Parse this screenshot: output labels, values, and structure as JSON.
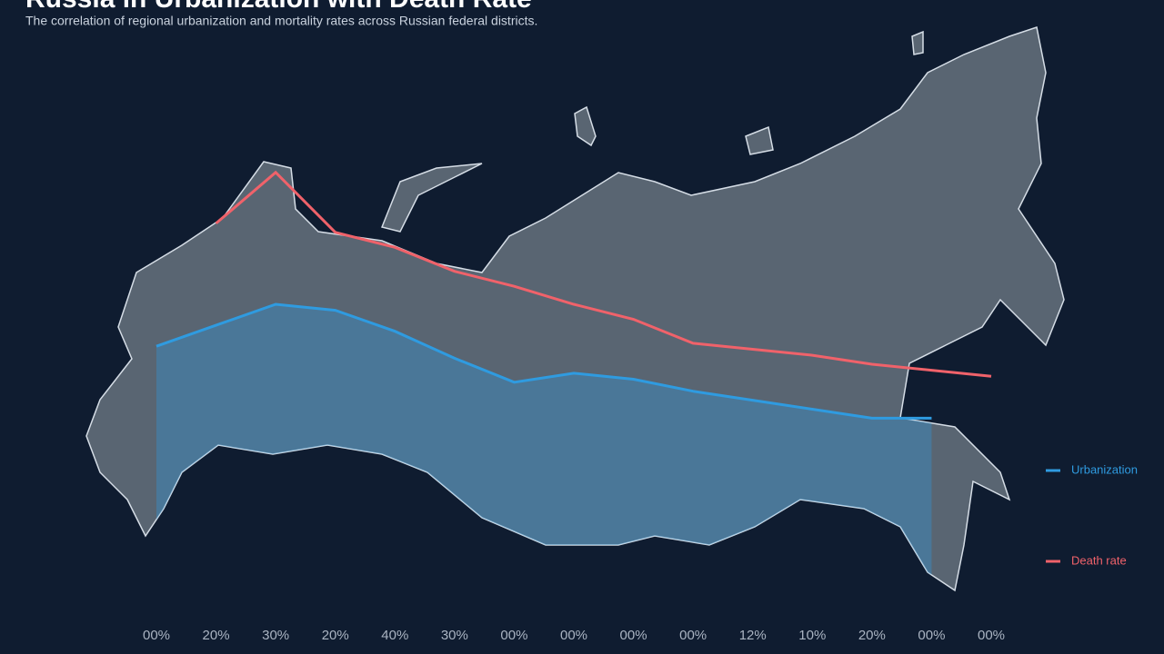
{
  "chart_data": {
    "type": "line",
    "title": "Russia in Urbanization with Death Rate",
    "subtitle": "The correlation of regional urbanization and mortality rates across Russian federal districts.",
    "categories": [
      "00%",
      "20%",
      "30%",
      "20%",
      "40%",
      "30%",
      "00%",
      "00%",
      "00%",
      "00%",
      "12%",
      "10%",
      "20%",
      "00%",
      "00%"
    ],
    "ylim": [
      0,
      100
    ],
    "series": [
      {
        "name": "Urbanization",
        "color": "#2f9be0",
        "values": [
          36,
          43,
          50,
          48,
          41,
          32,
          24,
          27,
          25,
          21,
          18,
          15,
          12,
          12,
          null
        ]
      },
      {
        "name": "Death rate",
        "color": "#f0626a",
        "values": [
          null,
          77,
          94,
          74,
          69,
          61,
          56,
          50,
          45,
          37,
          35,
          33,
          30,
          28,
          26
        ]
      }
    ]
  }
}
